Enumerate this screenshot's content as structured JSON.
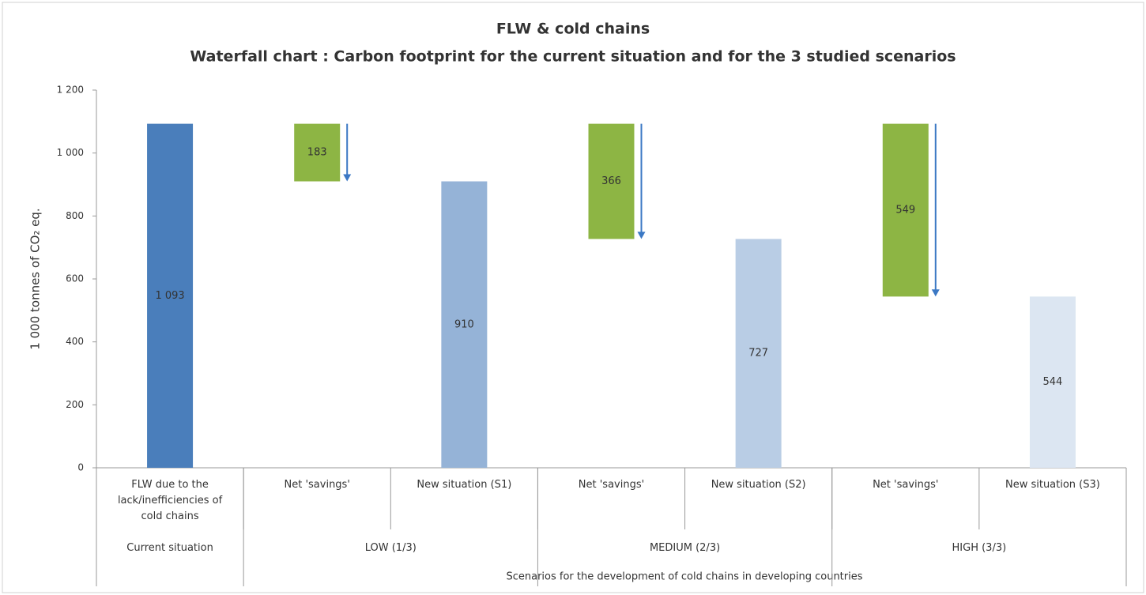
{
  "chart_data": {
    "type": "waterfall",
    "title": "FLW & cold chains",
    "subtitle": "Waterfall chart : Carbon footprint for the current situation and for the 3 studied scenarios",
    "y_label": "1 000 tonnes of CO₂ eq.",
    "x_label": "Scenarios for the development of cold chains in developing countries",
    "categories": [
      "FLW due to the lack/inefficiencies of cold chains",
      "Net 'savings'",
      "New situation (S1)",
      "Net 'savings'",
      "New situation (S2)",
      "Net 'savings'",
      "New situation (S3)"
    ],
    "groups": [
      "Current situation",
      "LOW (1/3)",
      null,
      "MEDIUM (2/3)",
      null,
      "HIGH (3/3)",
      null
    ],
    "measure": [
      "total",
      "decrease",
      "total",
      "decrease",
      "total",
      "decrease",
      "total"
    ],
    "values": [
      1093,
      183,
      910,
      366,
      727,
      549,
      544
    ],
    "value_labels": [
      "1 093",
      "183",
      "910",
      "366",
      "727",
      "549",
      "544"
    ],
    "colors": [
      "#4a7ebb",
      "#8db544",
      "#95b3d7",
      "#8db544",
      "#b9cde5",
      "#8db544",
      "#dce6f2"
    ],
    "arrow_color": "#3b78c4",
    "ylim": [
      0,
      1200
    ],
    "yticks": [
      0,
      200,
      400,
      600,
      800,
      {
        "value": 1000,
        "label": "1 000"
      },
      {
        "value": 1200,
        "label": "1 200"
      }
    ]
  }
}
